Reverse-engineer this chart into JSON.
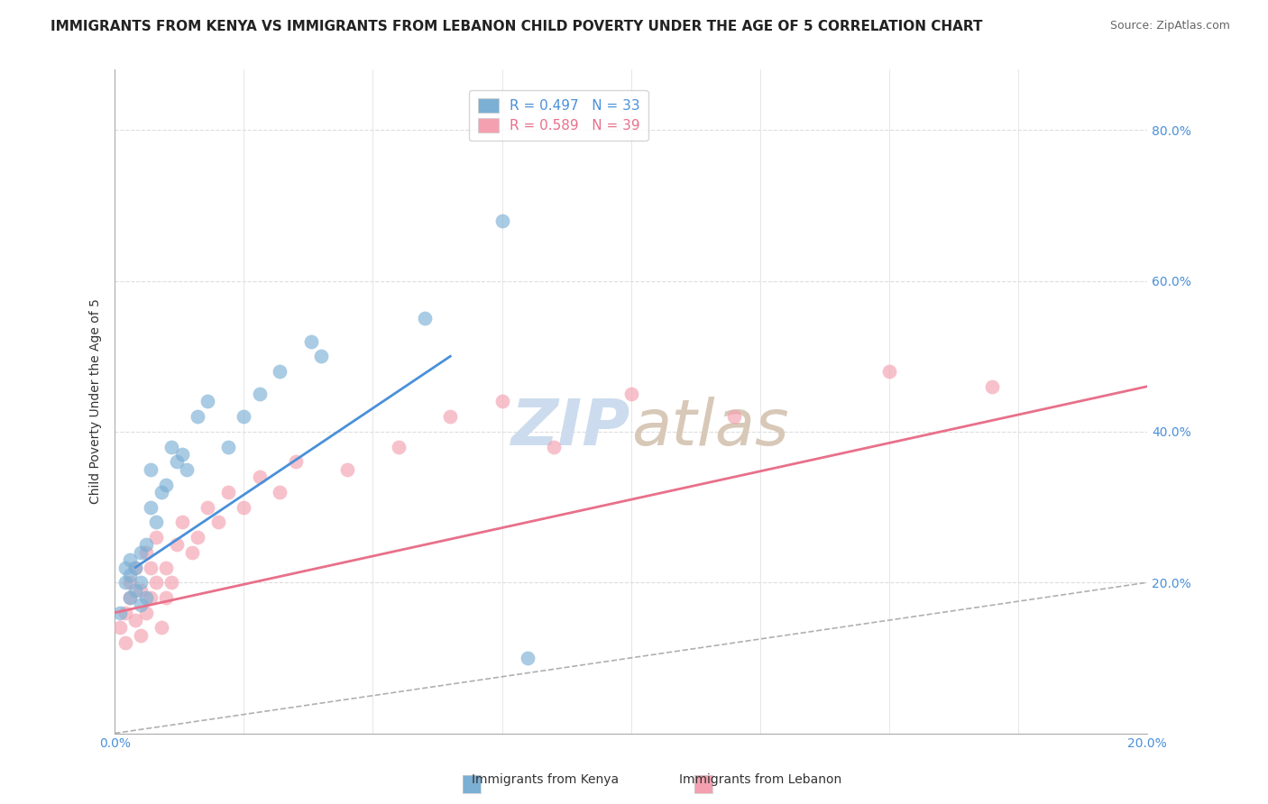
{
  "title": "IMMIGRANTS FROM KENYA VS IMMIGRANTS FROM LEBANON CHILD POVERTY UNDER THE AGE OF 5 CORRELATION CHART",
  "source": "Source: ZipAtlas.com",
  "ylabel": "Child Poverty Under the Age of 5",
  "legend_kenya": "R = 0.497   N = 33",
  "legend_lebanon": "R = 0.589   N = 39",
  "legend_label_kenya": "Immigrants from Kenya",
  "legend_label_lebanon": "Immigrants from Lebanon",
  "xlim": [
    0,
    0.2
  ],
  "ylim": [
    0,
    0.88
  ],
  "yticks": [
    0.0,
    0.2,
    0.4,
    0.6,
    0.8
  ],
  "ytick_labels": [
    "",
    "20.0%",
    "40.0%",
    "60.0%",
    "80.0%"
  ],
  "color_kenya": "#7bafd4",
  "color_lebanon": "#f4a0b0",
  "color_kenya_line": "#4a90d9",
  "color_lebanon_line": "#e8708a",
  "color_diag": "#b0b0b0",
  "watermark_zip": "ZIP",
  "watermark_atlas": "atlas",
  "kenya_x": [
    0.001,
    0.002,
    0.002,
    0.003,
    0.003,
    0.003,
    0.004,
    0.004,
    0.005,
    0.005,
    0.005,
    0.006,
    0.006,
    0.007,
    0.007,
    0.008,
    0.009,
    0.01,
    0.011,
    0.012,
    0.013,
    0.014,
    0.016,
    0.018,
    0.022,
    0.025,
    0.028,
    0.032,
    0.038,
    0.04,
    0.06,
    0.075,
    0.08
  ],
  "kenya_y": [
    0.16,
    0.2,
    0.22,
    0.18,
    0.21,
    0.23,
    0.19,
    0.22,
    0.17,
    0.2,
    0.24,
    0.18,
    0.25,
    0.3,
    0.35,
    0.28,
    0.32,
    0.33,
    0.38,
    0.36,
    0.37,
    0.35,
    0.42,
    0.44,
    0.38,
    0.42,
    0.45,
    0.48,
    0.52,
    0.5,
    0.55,
    0.68,
    0.1
  ],
  "lebanon_x": [
    0.001,
    0.002,
    0.002,
    0.003,
    0.003,
    0.004,
    0.004,
    0.005,
    0.005,
    0.006,
    0.006,
    0.007,
    0.007,
    0.008,
    0.008,
    0.009,
    0.01,
    0.01,
    0.011,
    0.012,
    0.013,
    0.015,
    0.016,
    0.018,
    0.02,
    0.022,
    0.025,
    0.028,
    0.032,
    0.035,
    0.045,
    0.055,
    0.065,
    0.075,
    0.085,
    0.1,
    0.12,
    0.15,
    0.17
  ],
  "lebanon_y": [
    0.14,
    0.12,
    0.16,
    0.18,
    0.2,
    0.15,
    0.22,
    0.13,
    0.19,
    0.16,
    0.24,
    0.18,
    0.22,
    0.2,
    0.26,
    0.14,
    0.18,
    0.22,
    0.2,
    0.25,
    0.28,
    0.24,
    0.26,
    0.3,
    0.28,
    0.32,
    0.3,
    0.34,
    0.32,
    0.36,
    0.35,
    0.38,
    0.42,
    0.44,
    0.38,
    0.45,
    0.42,
    0.48,
    0.46
  ],
  "kenya_line_x": [
    0.004,
    0.065
  ],
  "kenya_line_y": [
    0.22,
    0.5
  ],
  "lebanon_line_x": [
    0.0,
    0.2
  ],
  "lebanon_line_y": [
    0.16,
    0.46
  ],
  "title_fontsize": 11,
  "axis_fontsize": 10,
  "legend_fontsize": 11,
  "watermark_fontsize": 52,
  "watermark_color": "#ccdcee",
  "background_color": "#ffffff",
  "grid_color": "#dddddd"
}
